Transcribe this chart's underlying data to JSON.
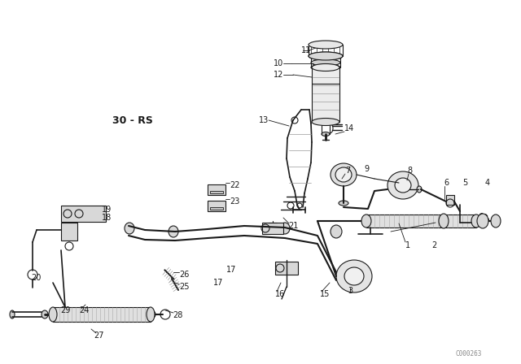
{
  "bg_color": "#ffffff",
  "line_color": "#1a1a1a",
  "label_30rs": "30 - RS",
  "watermark": "C000263",
  "label_fontsize": 9,
  "part_fontsize": 7
}
